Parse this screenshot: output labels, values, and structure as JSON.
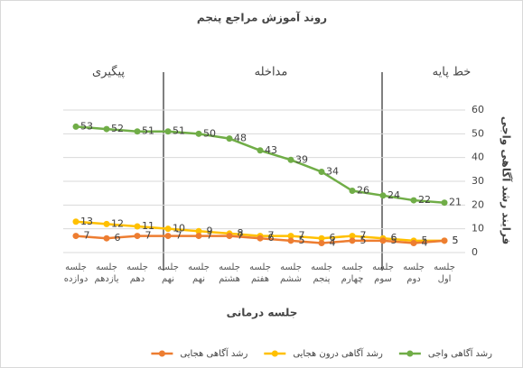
{
  "chart_data": {
    "type": "line",
    "title": "روند آموزش مراجع پنجم",
    "x_label": "جلسه درمانی",
    "y_label": "فرایند رشد آگاهی واجی",
    "phase_labels": [
      "خط پایه",
      "مداخله",
      "پیگیری"
    ],
    "categories": [
      "جلسه اول",
      "جلسه دوم",
      "جلسه سوم",
      "جلسه چهارم",
      "جلسه پنجم",
      "جلسه ششم",
      "جلسه هفتم",
      "جلسه هشتم",
      "جلسه نهم",
      "جلسه نهم",
      "جلسه دهم",
      "جلسه یازدهم",
      "جلسه دوازده"
    ],
    "series": [
      {
        "name": "رشد آگاهی واجی",
        "color": "#70ad47",
        "values": [
          21,
          22,
          24,
          26,
          34,
          39,
          43,
          48,
          50,
          51,
          51,
          52,
          53
        ]
      },
      {
        "name": "رشد آگاهی درون هجایی",
        "color": "#ffc000",
        "values": [
          5,
          5,
          6,
          7,
          6,
          7,
          7,
          8,
          9,
          10,
          11,
          12,
          13
        ]
      },
      {
        "name": "رشد آگاهی هجایی",
        "color": "#ed7d31",
        "values": [
          5,
          4,
          5,
          5,
          4,
          5,
          6,
          7,
          7,
          7,
          7,
          6,
          7
        ]
      }
    ],
    "ylim": [
      0,
      60
    ],
    "yticks": [
      0,
      10,
      20,
      30,
      40,
      50,
      60
    ],
    "grid": true,
    "legend": "bottom"
  }
}
